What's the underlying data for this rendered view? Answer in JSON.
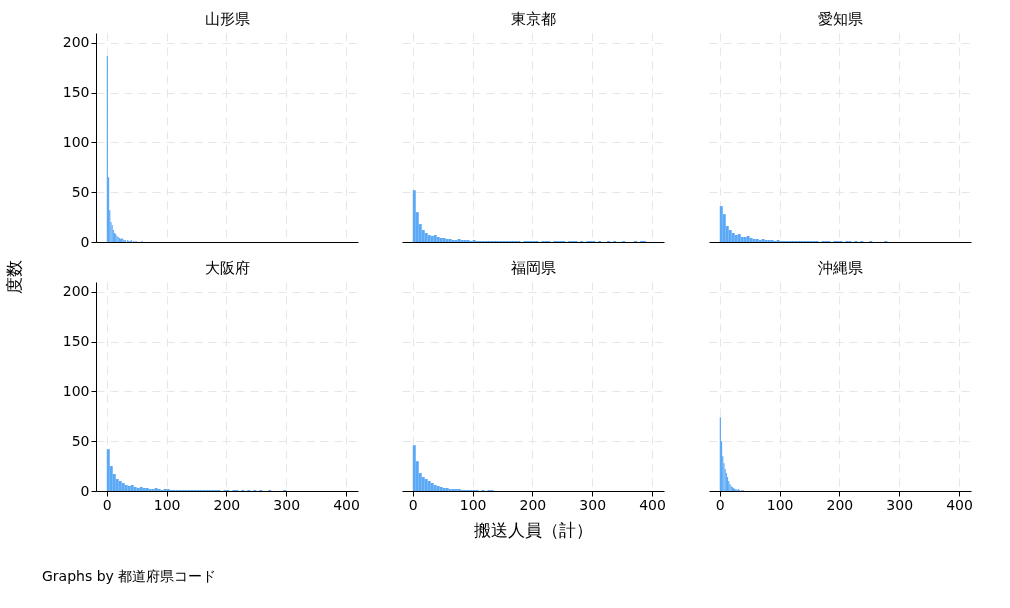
{
  "chart_data": [
    {
      "type": "histogram",
      "title": "山形県",
      "ylabel": "度数",
      "color": "#5aa8f6",
      "grid": true,
      "tick_labels": "y",
      "xlim": [
        -18,
        420
      ],
      "ylim": [
        0,
        210
      ],
      "xticks": [
        0,
        100,
        200,
        300,
        400
      ],
      "yticks": [
        0,
        50,
        100,
        150,
        200
      ],
      "bins": [
        0,
        2,
        4,
        6,
        8,
        10,
        12,
        14,
        16,
        18,
        20,
        22,
        24,
        26,
        28,
        30,
        32,
        34,
        36,
        38,
        40,
        42,
        44,
        46,
        48,
        50,
        52,
        54,
        56,
        58,
        60
      ],
      "values": [
        187,
        65,
        32,
        20,
        17,
        12,
        9,
        8,
        6,
        5,
        4,
        3,
        4,
        3,
        2,
        2,
        null,
        2,
        1,
        1,
        2,
        null,
        1,
        null,
        1,
        null,
        null,
        null,
        null,
        1
      ]
    },
    {
      "type": "histogram",
      "title": "東京都",
      "color": "#5aa8f6",
      "grid": true,
      "tick_labels": false,
      "xlim": [
        -18,
        420
      ],
      "ylim": [
        0,
        210
      ],
      "xticks": [
        0,
        100,
        200,
        300,
        400
      ],
      "yticks": [
        0,
        50,
        100,
        150,
        200
      ],
      "bins": [
        0,
        5,
        10,
        15,
        20,
        25,
        30,
        35,
        40,
        45,
        50,
        55,
        60,
        65,
        70,
        75,
        80,
        85,
        90,
        95,
        100,
        105,
        110,
        115,
        120,
        125,
        130,
        135,
        140,
        145,
        150,
        155,
        160,
        165,
        170,
        175,
        180,
        185,
        190,
        195,
        200,
        205,
        210,
        215,
        220,
        225,
        230,
        235,
        240,
        245,
        250,
        255,
        260,
        265,
        270,
        275,
        280,
        285,
        290,
        295,
        300,
        305,
        310,
        315,
        320,
        325,
        330,
        335,
        340,
        345,
        350,
        355,
        360,
        365,
        370,
        375,
        380,
        385,
        390,
        395,
        400
      ],
      "values": [
        52,
        30,
        18,
        12,
        9,
        7,
        6,
        7,
        5,
        4,
        4,
        3,
        3,
        2,
        2,
        3,
        2,
        2,
        2,
        1,
        2,
        1,
        1,
        1,
        1,
        1,
        1,
        1,
        1,
        1,
        1,
        1,
        1,
        1,
        1,
        1,
        null,
        1,
        1,
        1,
        1,
        1,
        null,
        1,
        1,
        1,
        null,
        1,
        1,
        1,
        1,
        null,
        1,
        1,
        1,
        null,
        1,
        null,
        1,
        1,
        1,
        null,
        1,
        null,
        null,
        1,
        null,
        1,
        null,
        null,
        1,
        null,
        null,
        null,
        1,
        null,
        1,
        1,
        null,
        null
      ]
    },
    {
      "type": "histogram",
      "title": "愛知県",
      "color": "#5aa8f6",
      "grid": true,
      "tick_labels": false,
      "xlim": [
        -18,
        420
      ],
      "ylim": [
        0,
        210
      ],
      "xticks": [
        0,
        100,
        200,
        300,
        400
      ],
      "yticks": [
        0,
        50,
        100,
        150,
        200
      ],
      "bins": [
        0,
        5,
        10,
        15,
        20,
        25,
        30,
        35,
        40,
        45,
        50,
        55,
        60,
        65,
        70,
        75,
        80,
        85,
        90,
        95,
        100,
        105,
        110,
        115,
        120,
        125,
        130,
        135,
        140,
        145,
        150,
        155,
        160,
        165,
        170,
        175,
        180,
        185,
        190,
        195,
        200,
        205,
        210,
        215,
        220,
        225,
        230,
        235,
        240,
        245,
        250,
        255,
        260,
        265,
        270,
        275,
        280,
        285,
        290,
        295,
        300
      ],
      "values": [
        36,
        28,
        16,
        12,
        9,
        7,
        8,
        5,
        5,
        6,
        4,
        3,
        3,
        2,
        3,
        2,
        2,
        2,
        1,
        2,
        1,
        1,
        1,
        1,
        1,
        1,
        1,
        1,
        1,
        1,
        1,
        1,
        1,
        null,
        1,
        1,
        1,
        null,
        1,
        1,
        1,
        null,
        1,
        1,
        null,
        1,
        null,
        1,
        null,
        null,
        1,
        null,
        null,
        null,
        null,
        1,
        null,
        null,
        null,
        null
      ]
    },
    {
      "type": "histogram",
      "title": "大阪府",
      "color": "#5aa8f6",
      "grid": true,
      "xlim": [
        -18,
        420
      ],
      "ylim": [
        0,
        210
      ],
      "xticks": [
        0,
        100,
        200,
        300,
        400
      ],
      "yticks": [
        0,
        50,
        100,
        150,
        200
      ],
      "annotations": [
        "Graphs by 都道府県コード"
      ],
      "bins": [
        0,
        5,
        10,
        15,
        20,
        25,
        30,
        35,
        40,
        45,
        50,
        55,
        60,
        65,
        70,
        75,
        80,
        85,
        90,
        95,
        100,
        105,
        110,
        115,
        120,
        125,
        130,
        135,
        140,
        145,
        150,
        155,
        160,
        165,
        170,
        175,
        180,
        185,
        190,
        195,
        200,
        205,
        210,
        215,
        220,
        225,
        230,
        235,
        240,
        245,
        250,
        255,
        260,
        265,
        270,
        275,
        280,
        285,
        290,
        295,
        300
      ],
      "values": [
        42,
        25,
        17,
        12,
        10,
        8,
        6,
        5,
        6,
        4,
        3,
        4,
        3,
        3,
        2,
        2,
        3,
        2,
        1,
        2,
        2,
        1,
        1,
        1,
        1,
        1,
        1,
        1,
        1,
        1,
        1,
        1,
        1,
        1,
        1,
        1,
        1,
        1,
        null,
        1,
        1,
        null,
        1,
        1,
        null,
        1,
        null,
        1,
        null,
        1,
        null,
        1,
        null,
        null,
        1,
        null,
        null,
        null,
        null,
        1
      ]
    },
    {
      "type": "histogram",
      "title": "福岡県",
      "xlabel": "搬送人員（計）",
      "color": "#5aa8f6",
      "grid": true,
      "tick_labels": "x",
      "xlim": [
        -18,
        420
      ],
      "ylim": [
        0,
        210
      ],
      "xticks": [
        0,
        100,
        200,
        300,
        400
      ],
      "yticks": [
        0,
        50,
        100,
        150,
        200
      ],
      "bins": [
        0,
        5,
        10,
        15,
        20,
        25,
        30,
        35,
        40,
        45,
        50,
        55,
        60,
        65,
        70,
        75,
        80,
        85,
        90,
        95,
        100,
        105,
        110,
        115,
        120,
        125,
        130,
        135
      ],
      "values": [
        46,
        30,
        18,
        14,
        12,
        10,
        8,
        6,
        5,
        4,
        3,
        3,
        2,
        2,
        2,
        2,
        1,
        1,
        1,
        1,
        1,
        1,
        null,
        1,
        null,
        1,
        1
      ]
    },
    {
      "type": "histogram",
      "title": "沖縄県",
      "color": "#5aa8f6",
      "grid": true,
      "tick_labels": "x",
      "xlim": [
        -18,
        420
      ],
      "ylim": [
        0,
        210
      ],
      "xticks": [
        0,
        100,
        200,
        300,
        400
      ],
      "yticks": [
        0,
        50,
        100,
        150,
        200
      ],
      "bins": [
        0,
        2,
        4,
        6,
        8,
        10,
        12,
        14,
        16,
        18,
        20,
        22,
        24,
        26,
        28,
        30,
        32,
        34,
        36,
        38,
        40
      ],
      "values": [
        74,
        50,
        35,
        28,
        22,
        18,
        14,
        10,
        7,
        5,
        4,
        3,
        2,
        2,
        1,
        2,
        1,
        null,
        1,
        1
      ]
    }
  ]
}
